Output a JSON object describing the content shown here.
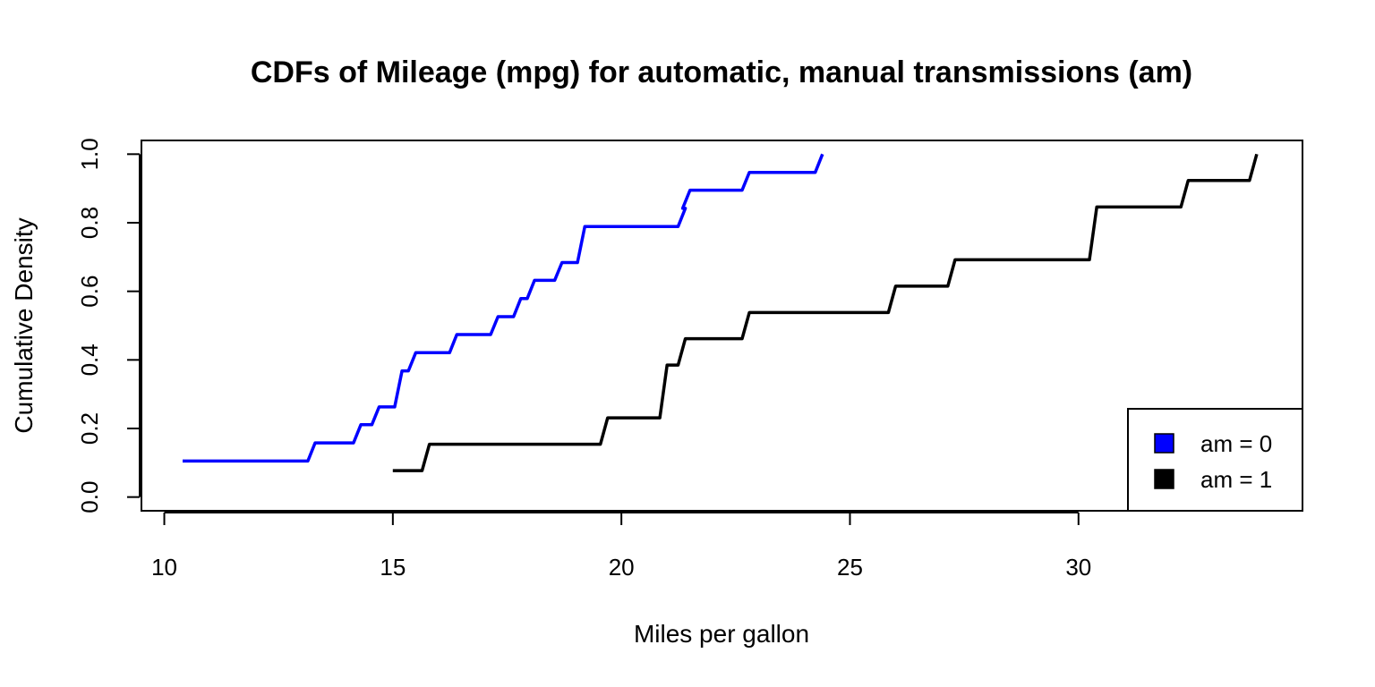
{
  "chart_data": {
    "type": "line",
    "title": "CDFs of Mileage (mpg) for automatic, manual transmissions (am)",
    "xlabel": "Miles per gallon",
    "ylabel": "Cumulative Density",
    "xlim": [
      9.5,
      34.9
    ],
    "ylim": [
      -0.04,
      1.04
    ],
    "xticks": [
      10,
      15,
      20,
      25,
      30
    ],
    "yticks": [
      0.0,
      0.2,
      0.4,
      0.6,
      0.8,
      1.0
    ],
    "xtick_labels": [
      "10",
      "15",
      "20",
      "25",
      "30"
    ],
    "ytick_labels": [
      "0.0",
      "0.2",
      "0.4",
      "0.6",
      "0.8",
      "1.0"
    ],
    "grid": false,
    "legend_position": "bottom-right",
    "series": [
      {
        "name": "am = 0",
        "color": "#0000ff",
        "x": [
          10.4,
          13.3,
          14.3,
          14.7,
          15.2,
          15.5,
          16.4,
          17.3,
          17.8,
          18.1,
          18.7,
          19.2,
          21.4,
          21.5,
          22.8,
          24.4
        ],
        "y": [
          0.105,
          0.158,
          0.211,
          0.263,
          0.368,
          0.421,
          0.474,
          0.526,
          0.579,
          0.632,
          0.684,
          0.789,
          0.842,
          0.895,
          0.947,
          1.0
        ]
      },
      {
        "name": "am = 1",
        "color": "#000000",
        "x": [
          15.0,
          15.8,
          19.7,
          21.0,
          21.4,
          22.8,
          26.0,
          27.3,
          30.4,
          32.4,
          33.9
        ],
        "y": [
          0.077,
          0.154,
          0.231,
          0.385,
          0.462,
          0.538,
          0.615,
          0.692,
          0.846,
          0.923,
          1.0
        ]
      }
    ]
  }
}
